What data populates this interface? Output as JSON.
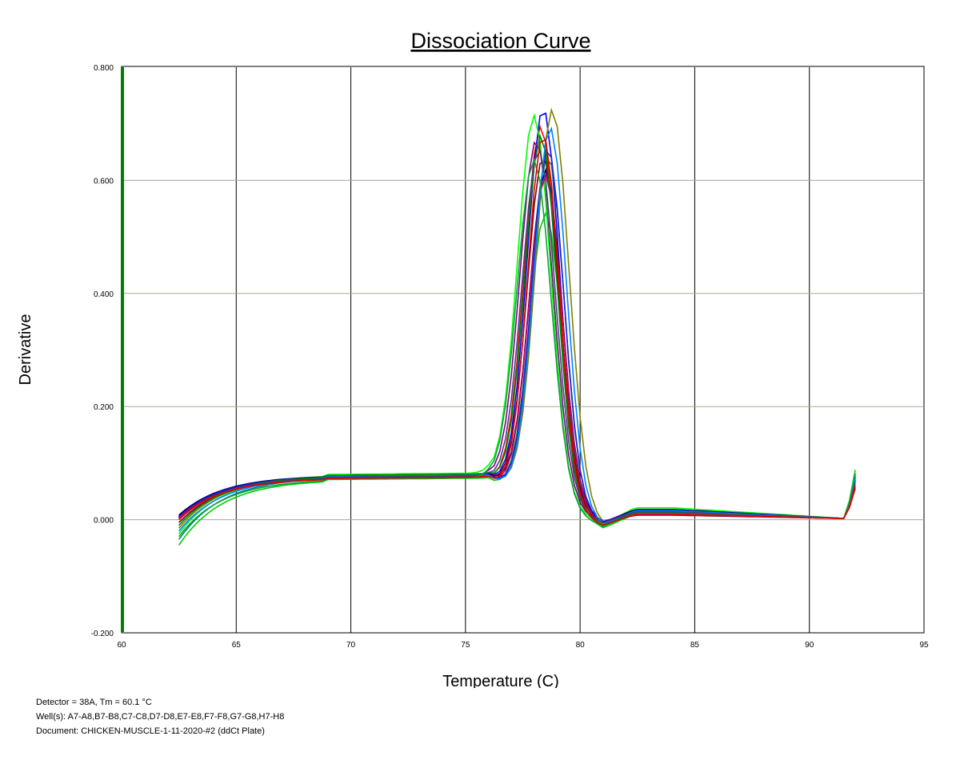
{
  "chart_data": {
    "type": "line",
    "title": "Dissociation Curve",
    "xlabel": "Temperature (C)",
    "ylabel": "Derivative",
    "xlim": [
      60,
      95
    ],
    "ylim": [
      -0.2,
      0.8
    ],
    "x_ticks": [
      "60",
      "65",
      "70",
      "75",
      "80",
      "85",
      "90",
      "95"
    ],
    "y_ticks": [
      "-0.200",
      "0.000",
      "0.200",
      "0.400",
      "0.600",
      "0.800"
    ],
    "grid": true,
    "legend": "none",
    "series": [
      {
        "color": "#ff0000",
        "start": 0.005,
        "plateau": 0.074,
        "peak_x": 78.3,
        "peak_y": 0.735,
        "width": 0.72,
        "dip": -0.012,
        "shoulder": 0.014,
        "end": 0.062
      },
      {
        "color": "#0000ff",
        "start": 0.006,
        "plateau": 0.077,
        "peak_x": 78.4,
        "peak_y": 0.768,
        "width": 0.7,
        "dip": -0.008,
        "shoulder": 0.017,
        "end": 0.075
      },
      {
        "color": "#00cc00",
        "start": -0.045,
        "plateau": 0.071,
        "peak_x": 78.5,
        "peak_y": 0.585,
        "width": 0.7,
        "dip": -0.015,
        "shoulder": 0.01,
        "end": 0.088
      },
      {
        "color": "#808000",
        "start": -0.015,
        "plateau": 0.079,
        "peak_x": 78.8,
        "peak_y": 0.775,
        "width": 0.72,
        "dip": -0.01,
        "shoulder": 0.013,
        "end": 0.06
      },
      {
        "color": "#800080",
        "start": 0.004,
        "plateau": 0.076,
        "peak_x": 78.1,
        "peak_y": 0.705,
        "width": 0.72,
        "dip": -0.005,
        "shoulder": 0.016,
        "end": 0.07
      },
      {
        "color": "#008080",
        "start": -0.035,
        "plateau": 0.076,
        "peak_x": 78.6,
        "peak_y": 0.69,
        "width": 0.7,
        "dip": -0.012,
        "shoulder": 0.018,
        "end": 0.08
      },
      {
        "color": "#00ff00",
        "start": -0.025,
        "plateau": 0.08,
        "peak_x": 78.0,
        "peak_y": 0.75,
        "width": 0.72,
        "dip": -0.008,
        "shoulder": 0.021,
        "end": 0.085
      },
      {
        "color": "#000080",
        "start": 0.008,
        "plateau": 0.078,
        "peak_x": 78.5,
        "peak_y": 0.66,
        "width": 0.7,
        "dip": -0.005,
        "shoulder": 0.018,
        "end": 0.07
      },
      {
        "color": "#800000",
        "start": -0.005,
        "plateau": 0.075,
        "peak_x": 78.4,
        "peak_y": 0.68,
        "width": 0.7,
        "dip": -0.006,
        "shoulder": 0.008,
        "end": 0.055
      },
      {
        "color": "#cc0066",
        "start": 0.0,
        "plateau": 0.074,
        "peak_x": 78.5,
        "peak_y": 0.65,
        "width": 0.7,
        "dip": -0.007,
        "shoulder": 0.009,
        "end": 0.055
      },
      {
        "color": "#2020c0",
        "start": 0.005,
        "plateau": 0.077,
        "peak_x": 78.6,
        "peak_y": 0.7,
        "width": 0.68,
        "dip": -0.004,
        "shoulder": 0.015,
        "end": 0.078
      },
      {
        "color": "#008000",
        "start": -0.01,
        "plateau": 0.078,
        "peak_x": 78.3,
        "peak_y": 0.72,
        "width": 0.7,
        "dip": -0.01,
        "shoulder": 0.012,
        "end": 0.068
      },
      {
        "color": "#0080ff",
        "start": -0.02,
        "plateau": 0.076,
        "peak_x": 78.7,
        "peak_y": 0.74,
        "width": 0.7,
        "dip": -0.009,
        "shoulder": 0.016,
        "end": 0.072
      },
      {
        "color": "#404080",
        "start": 0.002,
        "plateau": 0.075,
        "peak_x": 78.2,
        "peak_y": 0.69,
        "width": 0.72,
        "dip": -0.006,
        "shoulder": 0.014,
        "end": 0.066
      },
      {
        "color": "#10a040",
        "start": -0.03,
        "plateau": 0.072,
        "peak_x": 78.0,
        "peak_y": 0.67,
        "width": 0.74,
        "dip": -0.012,
        "shoulder": 0.011,
        "end": 0.082
      },
      {
        "color": "#e00000",
        "start": 0.003,
        "plateau": 0.073,
        "peak_x": 78.4,
        "peak_y": 0.72,
        "width": 0.68,
        "dip": -0.01,
        "shoulder": 0.01,
        "end": 0.058
      }
    ]
  },
  "footer": {
    "detector": "Detector = 38A, Tm = 60.1 °C",
    "wells": "Well(s): A7-A8,B7-B8,C7-C8,D7-D8,E7-E8,F7-F8,G7-G8,H7-H8",
    "document": "Document: CHICKEN-MUSCLE-1-11-2020-#2 (ddCt Plate)"
  }
}
